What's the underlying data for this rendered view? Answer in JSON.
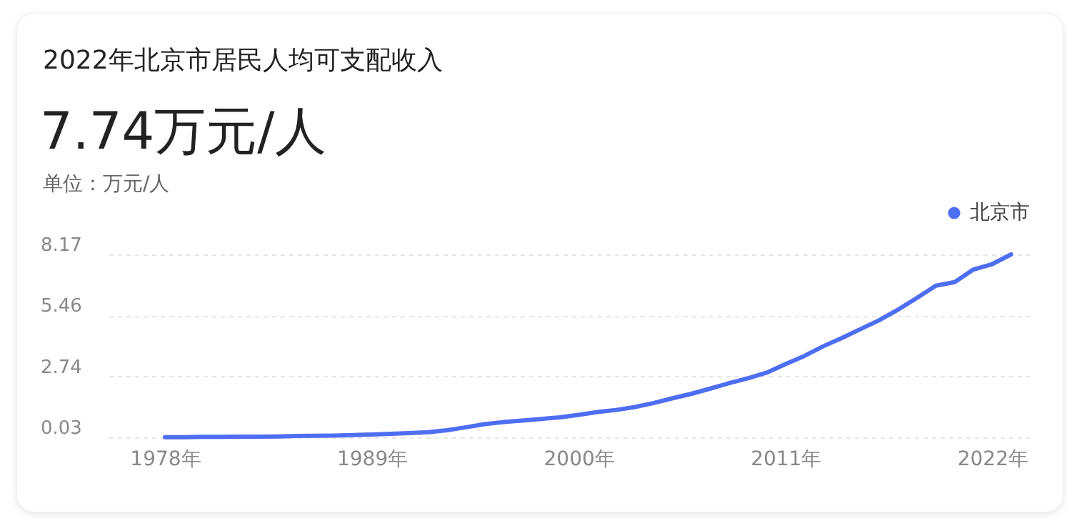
{
  "chart_data": {
    "type": "line",
    "title": "2022年北京市居民人均可支配收入",
    "subtitle": "7.74万元/人",
    "ylabel": "单位：万元/人",
    "x": [
      1978,
      1979,
      1980,
      1981,
      1982,
      1983,
      1984,
      1985,
      1986,
      1987,
      1988,
      1989,
      1990,
      1991,
      1992,
      1993,
      1994,
      1995,
      1996,
      1997,
      1998,
      1999,
      2000,
      2001,
      2002,
      2003,
      2004,
      2005,
      2006,
      2007,
      2008,
      2009,
      2010,
      2011,
      2012,
      2013,
      2014,
      2015,
      2016,
      2017,
      2018,
      2019,
      2020,
      2021,
      2022,
      2023
    ],
    "series": [
      {
        "name": "北京市",
        "color": "#4e6ef2",
        "values": [
          0.04,
          0.04,
          0.05,
          0.05,
          0.06,
          0.06,
          0.07,
          0.09,
          0.1,
          0.11,
          0.13,
          0.16,
          0.19,
          0.22,
          0.26,
          0.35,
          0.48,
          0.62,
          0.71,
          0.78,
          0.85,
          0.92,
          1.03,
          1.16,
          1.25,
          1.38,
          1.56,
          1.77,
          1.97,
          2.2,
          2.44,
          2.66,
          2.91,
          3.29,
          3.65,
          4.08,
          4.45,
          4.85,
          5.25,
          5.72,
          6.24,
          6.78,
          6.94,
          7.5,
          7.74,
          8.17
        ]
      }
    ],
    "xlim": [
      1975,
      2024
    ],
    "xticks": [
      {
        "value": 1978,
        "label": "1978年"
      },
      {
        "value": 1989,
        "label": "1989年"
      },
      {
        "value": 2000,
        "label": "2000年"
      },
      {
        "value": 2011,
        "label": "2011年"
      },
      {
        "value": 2022,
        "label": "2022年"
      }
    ],
    "ylim": [
      0.03,
      8.17
    ],
    "yticks": [
      0.03,
      2.74,
      5.46,
      8.17
    ],
    "grid": "y",
    "legend": "top right",
    "marker": "none",
    "line_style": "solid"
  }
}
